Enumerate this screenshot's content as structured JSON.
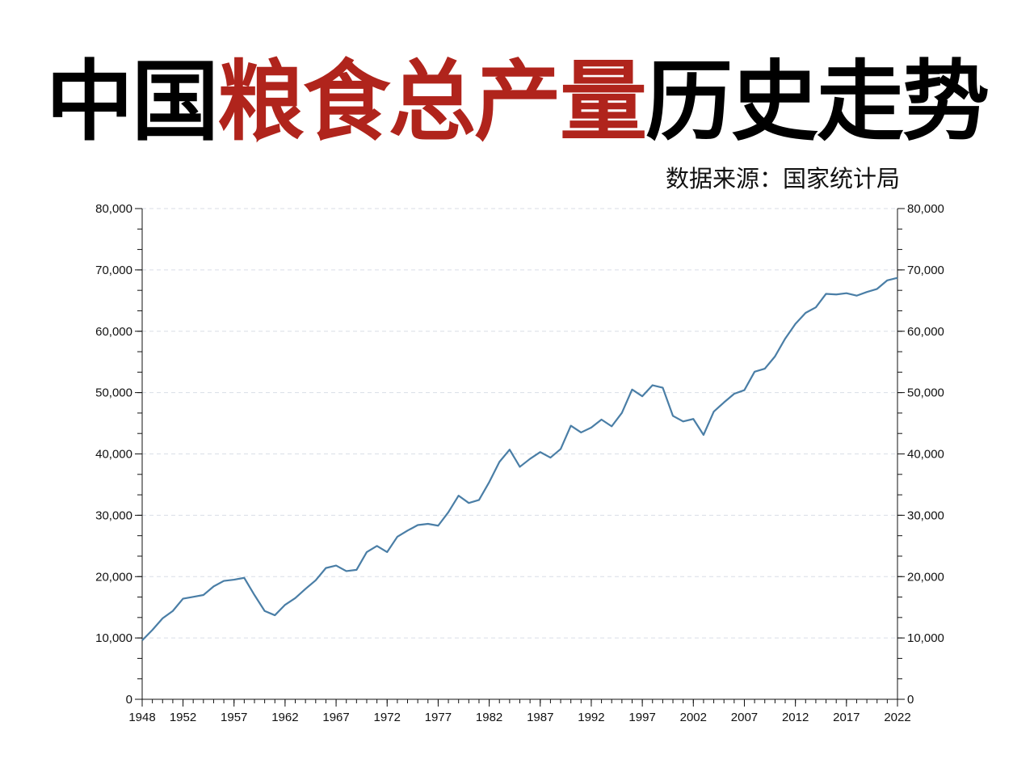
{
  "title": {
    "part1": "中国",
    "part2": "粮食总产量",
    "part3": "历史走势",
    "color_dark": "#000000",
    "color_accent": "#b0241c"
  },
  "source": "数据来源：国家统计局",
  "chart_data": {
    "type": "line",
    "line_color": "#4a7ea6",
    "grid": true,
    "ylim": [
      0,
      80000
    ],
    "xlim": [
      1948,
      2022
    ],
    "y_ticks": [
      0,
      10000,
      20000,
      30000,
      40000,
      50000,
      60000,
      70000,
      80000
    ],
    "y_tick_labels": [
      "0",
      "10,000",
      "20,000",
      "30,000",
      "40,000",
      "50,000",
      "60,000",
      "70,000",
      "80,000"
    ],
    "x_ticks": [
      1948,
      1952,
      1957,
      1962,
      1967,
      1972,
      1977,
      1982,
      1987,
      1992,
      1997,
      2002,
      2007,
      2012,
      2017,
      2022
    ],
    "x_tick_labels": [
      "1948",
      "1952",
      "1957",
      "1962",
      "1967",
      "1972",
      "1977",
      "1982",
      "1987",
      "1992",
      "1997",
      "2002",
      "2007",
      "2012",
      "2017",
      "2022"
    ],
    "x": [
      1948,
      1949,
      1950,
      1951,
      1952,
      1953,
      1954,
      1955,
      1956,
      1957,
      1958,
      1959,
      1960,
      1961,
      1962,
      1963,
      1964,
      1965,
      1966,
      1967,
      1968,
      1969,
      1970,
      1971,
      1972,
      1973,
      1974,
      1975,
      1976,
      1977,
      1978,
      1979,
      1980,
      1981,
      1982,
      1983,
      1984,
      1985,
      1986,
      1987,
      1988,
      1989,
      1990,
      1991,
      1992,
      1993,
      1994,
      1995,
      1996,
      1997,
      1998,
      1999,
      2000,
      2001,
      2002,
      2003,
      2004,
      2005,
      2006,
      2007,
      2008,
      2009,
      2010,
      2011,
      2012,
      2013,
      2014,
      2015,
      2016,
      2017,
      2018,
      2019,
      2020,
      2021,
      2022
    ],
    "y": [
      9600,
      11300,
      13200,
      14400,
      16400,
      16700,
      17000,
      18400,
      19300,
      19500,
      19800,
      17000,
      14400,
      13700,
      15400,
      16500,
      18000,
      19400,
      21400,
      21800,
      20900,
      21100,
      24000,
      25000,
      24000,
      26500,
      27500,
      28400,
      28600,
      28300,
      30500,
      33200,
      32000,
      32500,
      35400,
      38700,
      40700,
      37900,
      39200,
      40300,
      39400,
      40800,
      44600,
      43500,
      44300,
      45600,
      44500,
      46700,
      50500,
      49400,
      51200,
      50800,
      46200,
      45300,
      45700,
      43100,
      46900,
      48400,
      49800,
      50400,
      53400,
      53900,
      55900,
      58800,
      61200,
      63000,
      63900,
      66100,
      66000,
      66200,
      65800,
      66400,
      66900,
      68300,
      68700
    ]
  }
}
